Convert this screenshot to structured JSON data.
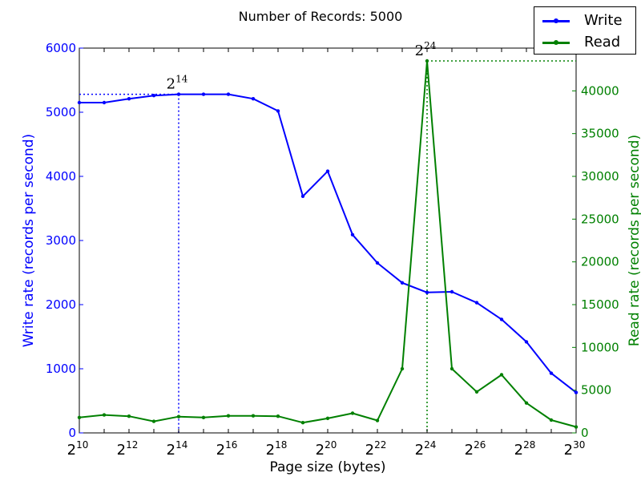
{
  "chart_data": {
    "type": "line",
    "title": "Number of Records: 5000",
    "xlabel": "Page size (bytes)",
    "ylabel_left": "Write rate (records per second)",
    "ylabel_right": "Read rate (records per second)",
    "x_exponents": [
      10,
      11,
      12,
      13,
      14,
      15,
      16,
      17,
      18,
      19,
      20,
      21,
      22,
      23,
      24,
      25,
      26,
      27,
      28,
      29,
      30
    ],
    "x_tick_base": "2",
    "x_tick_exponents": [
      "10",
      "12",
      "14",
      "16",
      "18",
      "20",
      "22",
      "24",
      "26",
      "28",
      "30"
    ],
    "ylim_left": [
      0,
      6000
    ],
    "yticks_left": [
      "0",
      "1000",
      "2000",
      "3000",
      "4000",
      "5000",
      "6000"
    ],
    "ylim_right": [
      0,
      45000
    ],
    "yticks_right": [
      "0",
      "5000",
      "10000",
      "15000",
      "20000",
      "25000",
      "30000",
      "35000",
      "40000"
    ],
    "grid": false,
    "legend_position": "top-right",
    "series": [
      {
        "name": "Write",
        "axis": "left",
        "color": "#0000ff",
        "values": [
          5150,
          5150,
          5210,
          5260,
          5280,
          5280,
          5280,
          5210,
          5020,
          3690,
          4080,
          3090,
          2650,
          2340,
          2190,
          2200,
          2030,
          1770,
          1420,
          930,
          630
        ]
      },
      {
        "name": "Read",
        "axis": "right",
        "color": "#008000",
        "values": [
          1800,
          2100,
          1950,
          1350,
          1900,
          1800,
          2000,
          2000,
          1950,
          1200,
          1700,
          2300,
          1450,
          7500,
          43500,
          7500,
          4800,
          6800,
          3500,
          1500,
          700
        ]
      }
    ],
    "annotations": [
      {
        "series": "Write",
        "x_exponent": 14,
        "value": 5280,
        "label_base": "2",
        "label_exp": "14"
      },
      {
        "series": "Read",
        "x_exponent": 24,
        "value": 43500,
        "label_base": "2",
        "label_exp": "24"
      }
    ]
  }
}
